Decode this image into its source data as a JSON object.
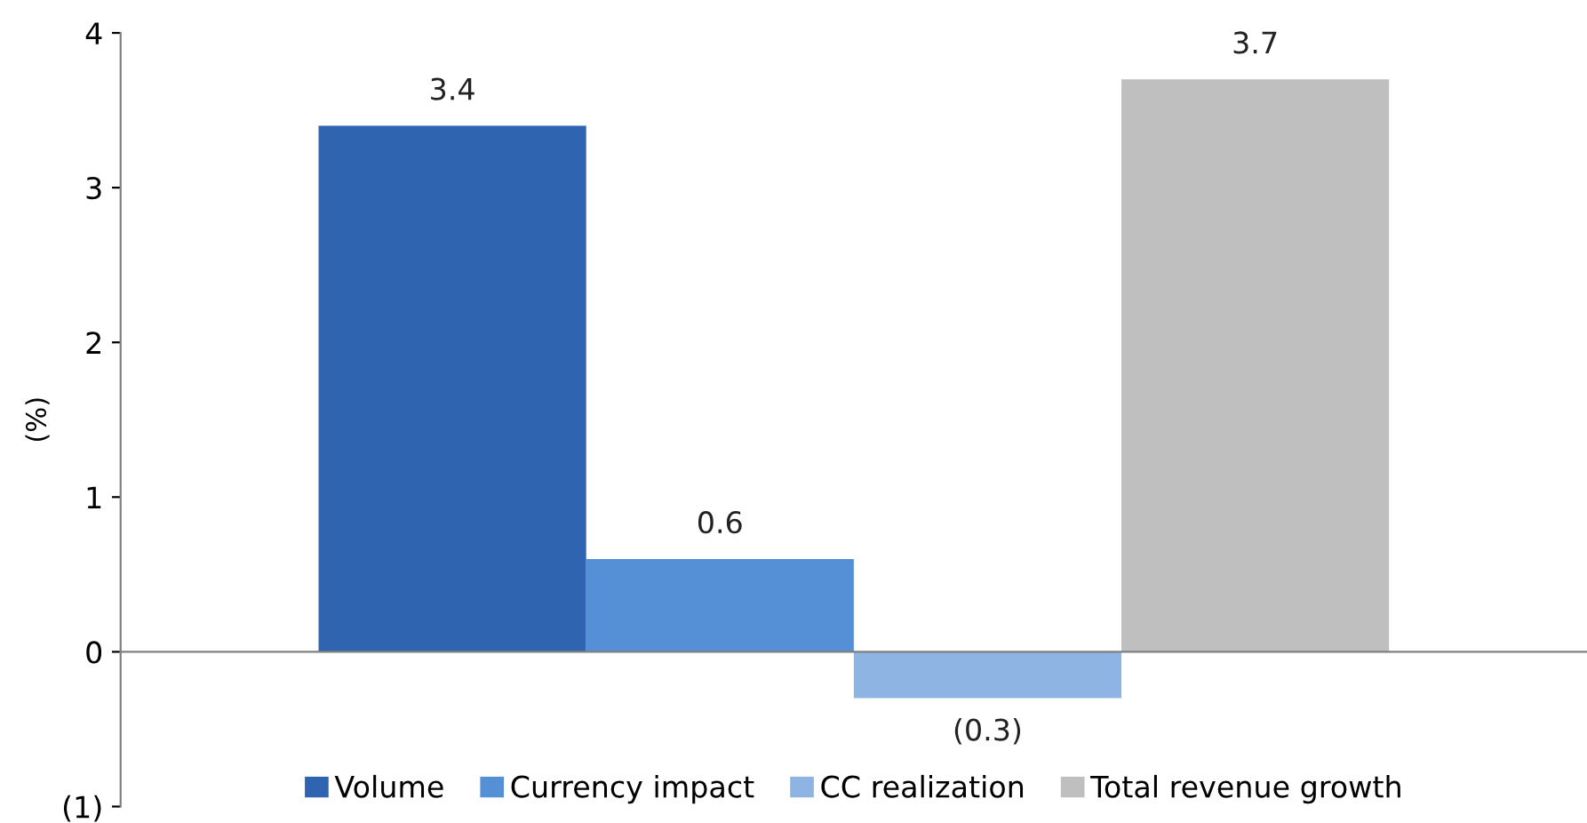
{
  "chart_data": {
    "type": "bar",
    "ylabel": "(%)",
    "categories": [
      null
    ],
    "series": [
      {
        "name": "Volume",
        "color": "#2e64b0",
        "values": [
          3.4
        ],
        "value_labels": [
          "3.4"
        ]
      },
      {
        "name": "Currency impact",
        "color": "#558fd6",
        "values": [
          0.6
        ],
        "value_labels": [
          "0.6"
        ]
      },
      {
        "name": "CC realization",
        "color": "#8db4e2",
        "values": [
          -0.3
        ],
        "value_labels": [
          "(0.3)"
        ]
      },
      {
        "name": "Total revenue growth",
        "color": "#bfbfbf",
        "values": [
          3.7
        ],
        "value_labels": [
          "3.7"
        ]
      }
    ],
    "ylim": [
      -1,
      4
    ],
    "yticks": [
      {
        "value": -1,
        "label": "(1)"
      },
      0,
      1,
      2,
      3,
      4
    ],
    "legend": "bottom"
  }
}
